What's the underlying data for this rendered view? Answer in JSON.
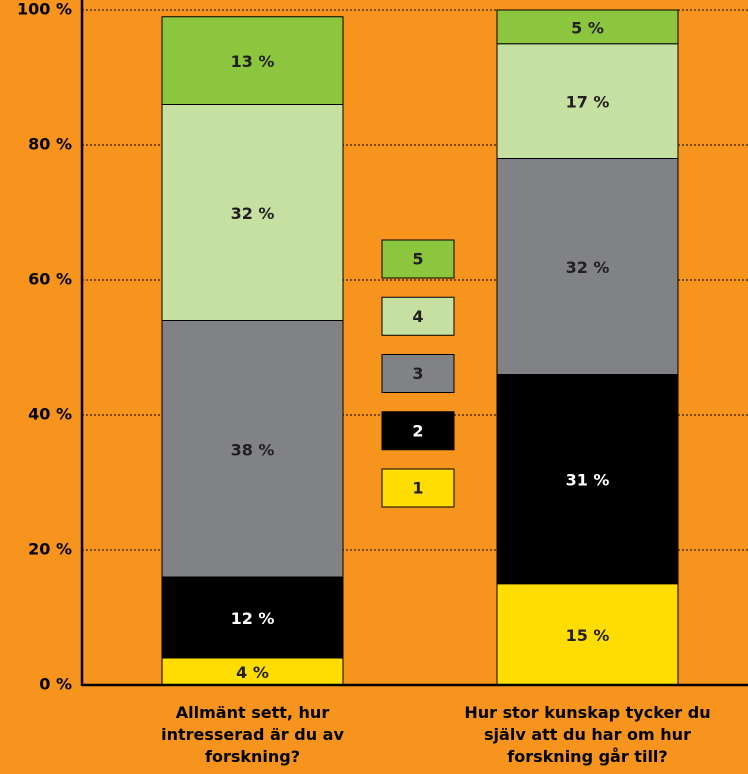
{
  "chart_data": {
    "type": "stacked_bar",
    "categories": [
      "Allmänt sett, hur intresserad är du av forskning?",
      "Hur stor kunskap tycker du själv att du har om hur forskning går till?"
    ],
    "series": [
      {
        "name": "1",
        "color": "#ffdd00",
        "values": [
          4,
          15
        ],
        "value_labels": [
          "4 %",
          "15 %"
        ]
      },
      {
        "name": "2",
        "color": "#000000",
        "values": [
          12,
          31
        ],
        "value_labels": [
          "12 %",
          "31 %"
        ]
      },
      {
        "name": "3",
        "color": "#808285",
        "values": [
          38,
          32
        ],
        "value_labels": [
          "38 %",
          "32 %"
        ]
      },
      {
        "name": "4",
        "color": "#c6e0a2",
        "values": [
          32,
          17
        ],
        "value_labels": [
          "32 %",
          "17 %"
        ]
      },
      {
        "name": "5",
        "color": "#8cc63f",
        "values": [
          13,
          5
        ],
        "value_labels": [
          "13 %",
          "5 %"
        ]
      }
    ],
    "ylim": [
      0,
      100
    ],
    "yticks": [
      {
        "value": 0,
        "label": "0 %"
      },
      {
        "value": 20,
        "label": "20 %"
      },
      {
        "value": 40,
        "label": "40 %"
      },
      {
        "value": 60,
        "label": "60 %"
      },
      {
        "value": 80,
        "label": "80 %"
      },
      {
        "value": 100,
        "label": "100 %"
      }
    ],
    "grid": true
  }
}
